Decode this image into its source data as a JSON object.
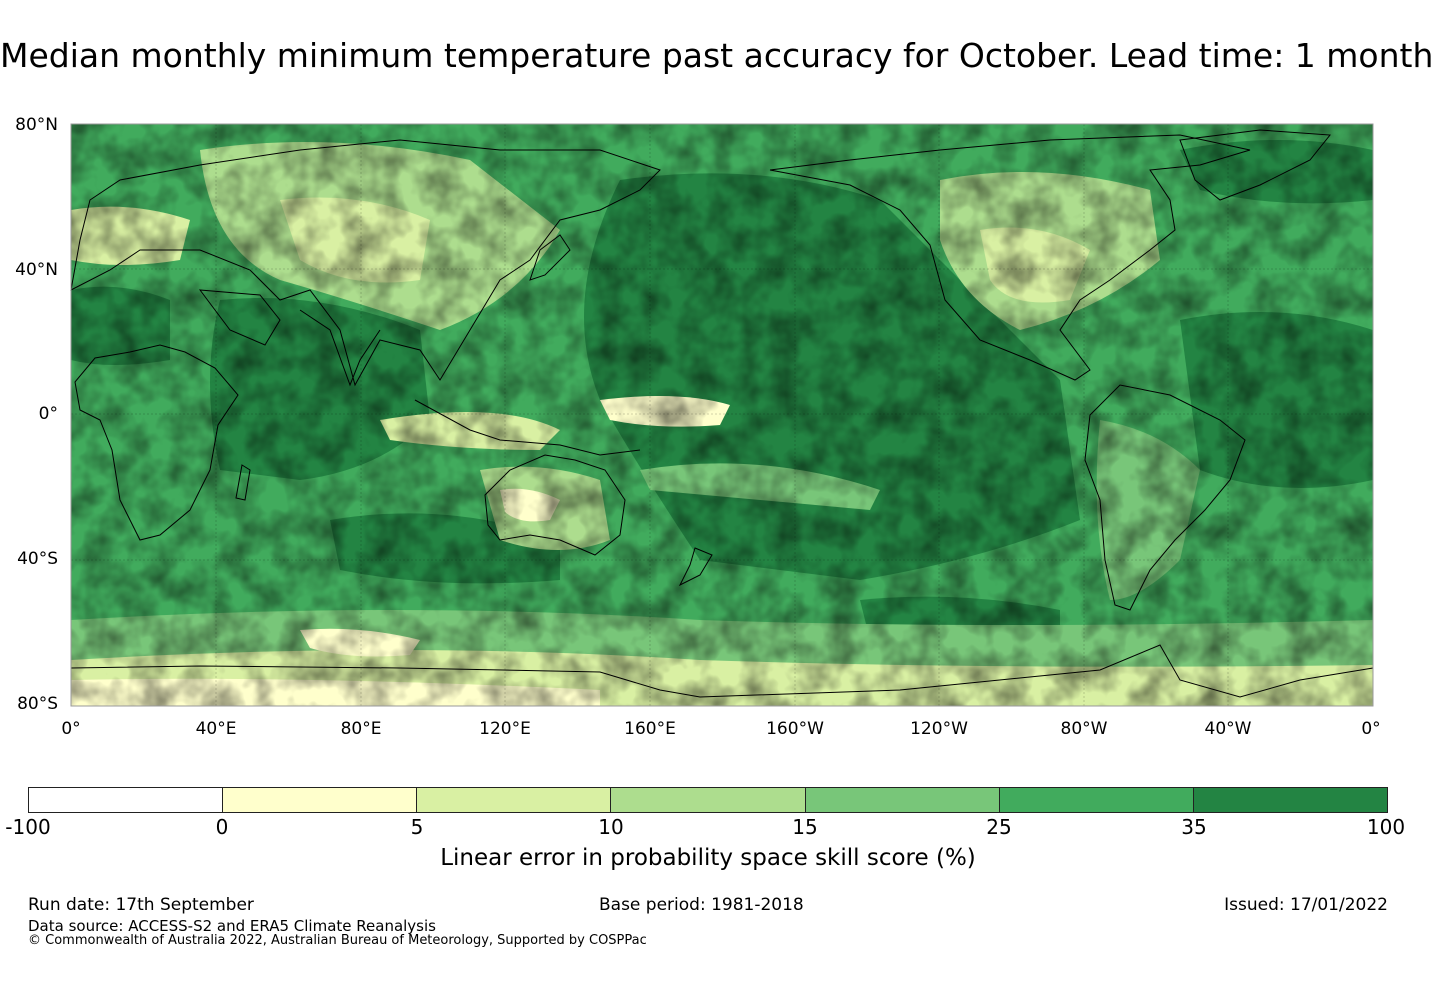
{
  "title": "Median monthly minimum temperature past accuracy for October. Lead time: 1 month",
  "map": {
    "lat_labels": [
      "80°N",
      "40°N",
      "0°",
      "40°S",
      "80°S"
    ],
    "lon_labels": [
      "0°",
      "40°E",
      "80°E",
      "120°E",
      "160°E",
      "160°W",
      "120°W",
      "80°W",
      "40°W",
      "0°"
    ],
    "gridlines": true,
    "projection": "Plate Carree centred on 180°"
  },
  "colorbar": {
    "ticks": [
      "-100",
      "0",
      "5",
      "10",
      "15",
      "25",
      "35",
      "100"
    ],
    "colors": [
      "#ffffff",
      "#ffffcc",
      "#d9f0a3",
      "#addd8e",
      "#78c679",
      "#41ab5d",
      "#238443"
    ],
    "label": "Linear error in probability space skill score (%)"
  },
  "footer": {
    "run_date": "Run date: 17th September",
    "base_period": "Base period: 1981-2018",
    "issued": "Issued: 17/01/2022",
    "data_source": "Data source: ACCESS-S2 and ERA5 Climate Reanalysis",
    "copyright": "© Commonwealth of Australia 2022, Australian Bureau of Meteorology, Supported by COSPPac"
  }
}
